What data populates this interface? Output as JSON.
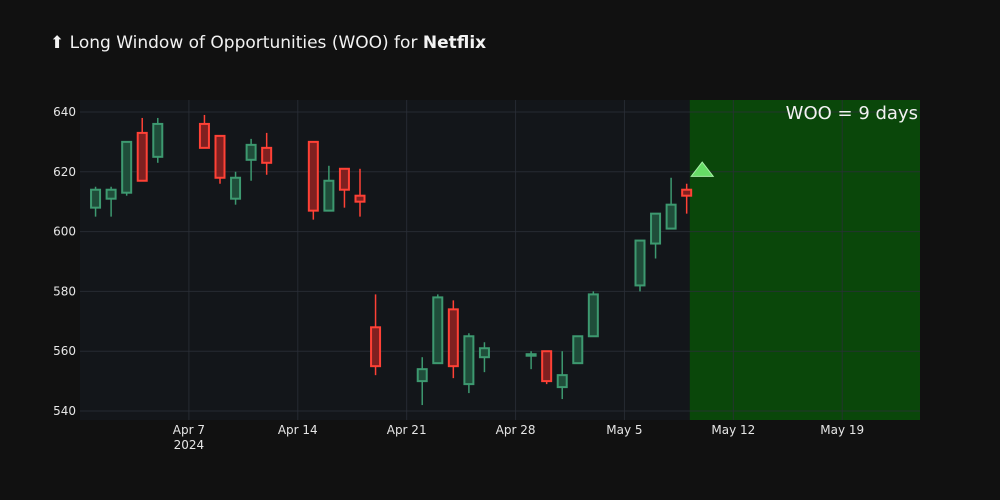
{
  "header": {
    "arrow": "⬆",
    "title_prefix": "Long Window of Opportunities (WOO) for",
    "company": "Netflix"
  },
  "colors": {
    "background": "#111111",
    "plot_background": "#13161a",
    "grid": "#2b3038",
    "increasing": "#3d9970",
    "increasing_fill": "#1f4d3a",
    "decreasing": "#ff4136",
    "decreasing_fill": "#7f2020",
    "woo_region": "#0a4a0a",
    "marker": "#66dd66"
  },
  "chart_data": {
    "type": "candlestick",
    "title": "Long Window of Opportunities (WOO) for Netflix",
    "xlabel": "",
    "ylabel": "",
    "xlim": [
      "2024-03-31",
      "2024-05-24"
    ],
    "ylim": [
      537,
      644
    ],
    "x_ticks": [
      {
        "date": "2024-04-07",
        "label": "Apr 7",
        "sublabel": "2024"
      },
      {
        "date": "2024-04-14",
        "label": "Apr 14"
      },
      {
        "date": "2024-04-21",
        "label": "Apr 21"
      },
      {
        "date": "2024-04-28",
        "label": "Apr 28"
      },
      {
        "date": "2024-05-05",
        "label": "May 5"
      },
      {
        "date": "2024-05-12",
        "label": "May 12"
      },
      {
        "date": "2024-05-19",
        "label": "May 19"
      }
    ],
    "y_ticks": [
      540,
      560,
      580,
      600,
      620,
      640
    ],
    "grid": true,
    "candles": [
      {
        "date": "2024-04-01",
        "open": 608,
        "high": 615,
        "low": 605,
        "close": 614
      },
      {
        "date": "2024-04-02",
        "open": 611,
        "high": 615,
        "low": 605,
        "close": 614
      },
      {
        "date": "2024-04-03",
        "open": 613,
        "high": 630,
        "low": 612,
        "close": 630
      },
      {
        "date": "2024-04-04",
        "open": 633,
        "high": 638,
        "low": 617,
        "close": 617
      },
      {
        "date": "2024-04-05",
        "open": 625,
        "high": 638,
        "low": 623,
        "close": 636
      },
      {
        "date": "2024-04-08",
        "open": 636,
        "high": 639,
        "low": 628,
        "close": 628
      },
      {
        "date": "2024-04-09",
        "open": 632,
        "high": 632,
        "low": 616,
        "close": 618
      },
      {
        "date": "2024-04-10",
        "open": 611,
        "high": 620,
        "low": 609,
        "close": 618
      },
      {
        "date": "2024-04-11",
        "open": 624,
        "high": 631,
        "low": 617,
        "close": 629
      },
      {
        "date": "2024-04-12",
        "open": 628,
        "high": 633,
        "low": 619,
        "close": 623
      },
      {
        "date": "2024-04-15",
        "open": 630,
        "high": 630,
        "low": 604,
        "close": 607
      },
      {
        "date": "2024-04-16",
        "open": 607,
        "high": 622,
        "low": 607,
        "close": 617
      },
      {
        "date": "2024-04-17",
        "open": 621,
        "high": 621,
        "low": 608,
        "close": 614
      },
      {
        "date": "2024-04-18",
        "open": 612,
        "high": 621,
        "low": 605,
        "close": 610
      },
      {
        "date": "2024-04-19",
        "open": 568,
        "high": 579,
        "low": 552,
        "close": 555
      },
      {
        "date": "2024-04-22",
        "open": 550,
        "high": 558,
        "low": 542,
        "close": 554
      },
      {
        "date": "2024-04-23",
        "open": 556,
        "high": 579,
        "low": 556,
        "close": 578
      },
      {
        "date": "2024-04-24",
        "open": 574,
        "high": 577,
        "low": 551,
        "close": 555
      },
      {
        "date": "2024-04-25",
        "open": 549,
        "high": 566,
        "low": 546,
        "close": 565
      },
      {
        "date": "2024-04-26",
        "open": 558,
        "high": 563,
        "low": 553,
        "close": 561
      },
      {
        "date": "2024-04-29",
        "open": 559,
        "high": 560,
        "low": 554,
        "close": 559
      },
      {
        "date": "2024-04-30",
        "open": 560,
        "high": 560,
        "low": 549,
        "close": 550
      },
      {
        "date": "2024-05-01",
        "open": 548,
        "high": 560,
        "low": 544,
        "close": 552
      },
      {
        "date": "2024-05-02",
        "open": 556,
        "high": 565,
        "low": 556,
        "close": 565
      },
      {
        "date": "2024-05-03",
        "open": 565,
        "high": 580,
        "low": 565,
        "close": 579
      },
      {
        "date": "2024-05-06",
        "open": 582,
        "high": 597,
        "low": 580,
        "close": 597
      },
      {
        "date": "2024-05-07",
        "open": 596,
        "high": 606,
        "low": 591,
        "close": 606
      },
      {
        "date": "2024-05-08",
        "open": 601,
        "high": 618,
        "low": 601,
        "close": 609
      },
      {
        "date": "2024-05-09",
        "open": 614,
        "high": 616,
        "low": 606,
        "close": 612
      }
    ],
    "markers": [
      {
        "date": "2024-05-10",
        "value": 620.5,
        "symbol": "triangle-up"
      }
    ],
    "regions": [
      {
        "start": "2024-05-10",
        "end": "2024-05-24",
        "label": "WOO = 9 days"
      }
    ]
  }
}
